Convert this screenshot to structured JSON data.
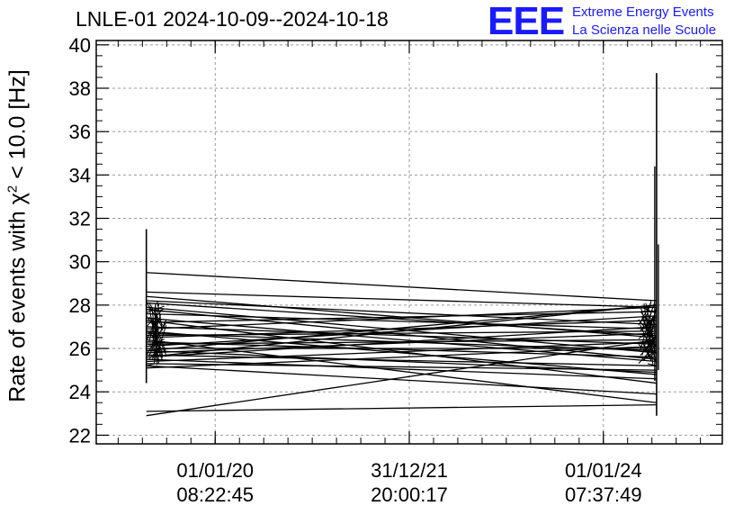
{
  "chart_data": {
    "type": "line",
    "title": "LNLE-01 2024-10-09--2024-10-18",
    "ylabel_prefix": "Rate of events with ",
    "ylabel_chi": "χ",
    "ylabel_sup": "2",
    "ylabel_suffix": " < 10.0 [Hz]",
    "ylim": [
      21.6,
      40.2
    ],
    "yticks": [
      22,
      24,
      26,
      28,
      30,
      32,
      34,
      36,
      38,
      40
    ],
    "xlim": [
      0,
      1
    ],
    "xticks": [
      {
        "pos": 0.19,
        "line1": "01/01/20",
        "line2": "08:22:45"
      },
      {
        "pos": 0.5,
        "line1": "31/12/21",
        "line2": "20:00:17"
      },
      {
        "pos": 0.81,
        "line1": "01/01/24",
        "line2": "07:37:49"
      }
    ],
    "grid": true,
    "series_start_x": 0.08,
    "series_end_x": 0.895,
    "spike_left": {
      "x": 0.08,
      "min": 24.4,
      "max": 31.5
    },
    "spike_right": {
      "x": 0.895,
      "min": 22.9,
      "max": 38.7
    },
    "segments": [
      [
        29.5,
        28.2
      ],
      [
        28.6,
        27.9
      ],
      [
        28.4,
        26.5
      ],
      [
        28.2,
        27.1
      ],
      [
        27.9,
        25.8
      ],
      [
        27.6,
        26.9
      ],
      [
        27.4,
        25.4
      ],
      [
        27.2,
        27.7
      ],
      [
        27.0,
        26.2
      ],
      [
        26.9,
        27.9
      ],
      [
        26.7,
        25.9
      ],
      [
        26.6,
        26.8
      ],
      [
        26.5,
        27.3
      ],
      [
        26.3,
        25.6
      ],
      [
        26.2,
        26.4
      ],
      [
        26.1,
        27.5
      ],
      [
        26.0,
        26.0
      ],
      [
        25.9,
        24.9
      ],
      [
        25.8,
        26.7
      ],
      [
        25.7,
        25.2
      ],
      [
        25.6,
        27.0
      ],
      [
        25.5,
        24.6
      ],
      [
        25.4,
        26.3
      ],
      [
        25.3,
        25.0
      ],
      [
        25.2,
        23.9
      ],
      [
        25.1,
        26.1
      ],
      [
        27.8,
        25.5
      ],
      [
        28.1,
        26.6
      ],
      [
        26.8,
        24.8
      ],
      [
        25.6,
        28.0
      ],
      [
        23.1,
        23.4
      ],
      [
        22.9,
        26.4
      ],
      [
        26.4,
        23.5
      ],
      [
        27.3,
        24.4
      ],
      [
        25.9,
        28.0
      ]
    ]
  },
  "logo": {
    "mark": "EEE",
    "line1": "Extreme Energy Events",
    "line2": "La Scienza nelle Scuole"
  }
}
